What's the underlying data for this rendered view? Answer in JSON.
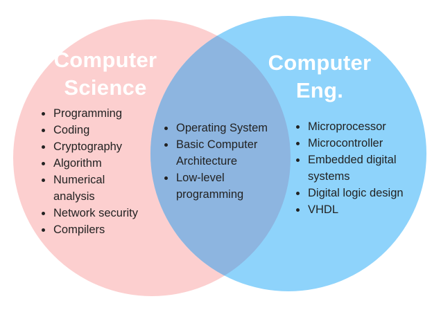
{
  "diagram": {
    "type": "venn",
    "colors": {
      "left_circle": "#fccfcf",
      "right_circle": "#8ed3fb",
      "overlap": "#8db5e0",
      "title_text": "#ffffff",
      "body_text": "#222222"
    },
    "left": {
      "title_lines": [
        "Computer",
        "Science"
      ],
      "items": [
        [
          "Programming"
        ],
        [
          "Coding"
        ],
        [
          "Cryptography"
        ],
        [
          "Algorithm"
        ],
        [
          "Numerical",
          "analysis"
        ],
        [
          "Network security"
        ],
        [
          "Compilers"
        ]
      ]
    },
    "center": {
      "items": [
        [
          "Operating System"
        ],
        [
          "Basic Computer",
          "Architecture"
        ],
        [
          "Low-level",
          "programming"
        ]
      ]
    },
    "right": {
      "title_lines": [
        "Computer",
        "Eng."
      ],
      "items": [
        [
          "Microprocessor"
        ],
        [
          "Microcontroller"
        ],
        [
          "Embedded digital",
          "systems"
        ],
        [
          "Digital logic design"
        ],
        [
          "VHDL"
        ]
      ]
    }
  }
}
